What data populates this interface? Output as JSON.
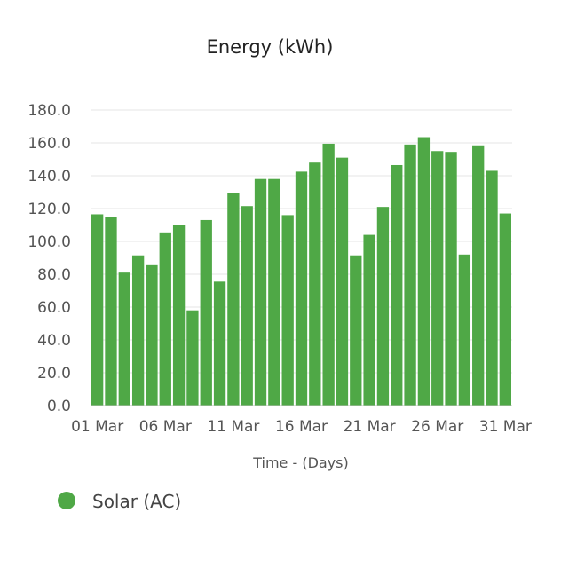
{
  "chart_data": {
    "type": "bar",
    "title": "Energy (kWh)",
    "xlabel": "Time - (Days)",
    "ylabel": "",
    "ylim": [
      0,
      180
    ],
    "yticks": [
      "0.0",
      "20.0",
      "40.0",
      "60.0",
      "80.0",
      "100.0",
      "120.0",
      "140.0",
      "160.0",
      "180.0"
    ],
    "x_tick_labels": [
      {
        "index": 0,
        "label": "01 Mar"
      },
      {
        "index": 5,
        "label": "06 Mar"
      },
      {
        "index": 10,
        "label": "11 Mar"
      },
      {
        "index": 15,
        "label": "16 Mar"
      },
      {
        "index": 20,
        "label": "21 Mar"
      },
      {
        "index": 25,
        "label": "26 Mar"
      },
      {
        "index": 30,
        "label": "31 Mar"
      }
    ],
    "categories": [
      "01 Mar",
      "02 Mar",
      "03 Mar",
      "04 Mar",
      "05 Mar",
      "06 Mar",
      "07 Mar",
      "08 Mar",
      "09 Mar",
      "10 Mar",
      "11 Mar",
      "12 Mar",
      "13 Mar",
      "14 Mar",
      "15 Mar",
      "16 Mar",
      "17 Mar",
      "18 Mar",
      "19 Mar",
      "20 Mar",
      "21 Mar",
      "22 Mar",
      "23 Mar",
      "24 Mar",
      "25 Mar",
      "26 Mar",
      "27 Mar",
      "28 Mar",
      "29 Mar",
      "30 Mar",
      "31 Mar"
    ],
    "series": [
      {
        "name": "Solar (AC)",
        "color": "#4fa846",
        "values": [
          116.5,
          115,
          81,
          91.5,
          85.5,
          105.5,
          110,
          58,
          113,
          75.5,
          129.5,
          121.5,
          138,
          138,
          116,
          142.5,
          148,
          159.5,
          151,
          91.5,
          104,
          121,
          146.5,
          159,
          163.5,
          155,
          154.5,
          92,
          158.5,
          143,
          117
        ]
      }
    ],
    "grid": true,
    "legend_position": "bottom-left"
  }
}
